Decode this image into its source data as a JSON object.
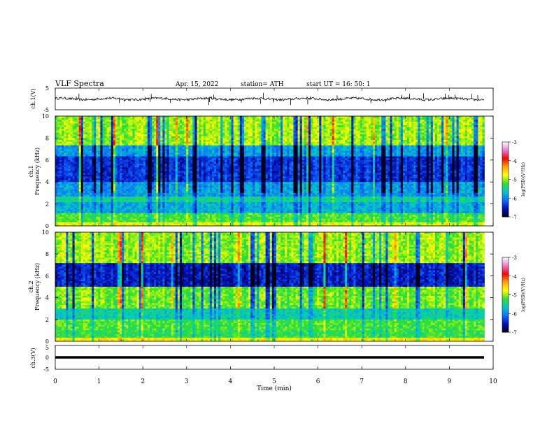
{
  "header": {
    "title": "VLF  Spectra",
    "date": "Apr. 15, 2022",
    "station": "station= ATH",
    "start": "start  UT  =   16: 50: 1"
  },
  "chart_data": {
    "type": "heatmap",
    "x_axis": {
      "label": "Time  (min)",
      "range": [
        0,
        10
      ],
      "ticks": [
        0,
        1,
        2,
        3,
        4,
        5,
        6,
        7,
        8,
        9,
        10
      ],
      "data_extent": [
        0,
        9.8
      ]
    },
    "panels": [
      {
        "id": "ch1-waveform",
        "type": "line",
        "ylabel": "ch.1(V)",
        "ylim": [
          -5,
          5
        ],
        "ytick_labels": [
          "5",
          "-5"
        ],
        "baseline": 0,
        "description": "noisy waveform with occasional spikes"
      },
      {
        "id": "ch1-spectrogram",
        "type": "heatmap",
        "ylabel": "ch.1\nFrequency  (kHz)",
        "ylim": [
          0,
          10
        ],
        "ytick_labels": [
          "0",
          "2",
          "4",
          "6",
          "8",
          "10"
        ],
        "bands": [
          {
            "from": 0,
            "to": 0.3,
            "level": -4.8
          },
          {
            "from": 0.3,
            "to": 1.2,
            "level": -5.2
          },
          {
            "from": 1.2,
            "to": 2.2,
            "level": -5.8
          },
          {
            "from": 2.2,
            "to": 2.6,
            "level": -5.5
          },
          {
            "from": 2.6,
            "to": 4.0,
            "level": -5.9
          },
          {
            "from": 4.0,
            "to": 6.4,
            "level": -6.4
          },
          {
            "from": 6.4,
            "to": 7.4,
            "level": -5.9
          },
          {
            "from": 7.4,
            "to": 10,
            "level": -5.0
          }
        ]
      },
      {
        "id": "ch2-spectrogram",
        "type": "heatmap",
        "ylabel": "ch.2\nFrequency  (kHz)",
        "ylim": [
          0,
          10
        ],
        "ytick_labels": [
          "0",
          "2",
          "4",
          "6",
          "8",
          "10"
        ],
        "bands": [
          {
            "from": 0,
            "to": 0.4,
            "level": -4.7
          },
          {
            "from": 0.4,
            "to": 1.0,
            "level": -5.3
          },
          {
            "from": 1.0,
            "to": 2.0,
            "level": -5.2
          },
          {
            "from": 2.0,
            "to": 3.0,
            "level": -5.6
          },
          {
            "from": 3.0,
            "to": 5.0,
            "level": -5.1
          },
          {
            "from": 5.0,
            "to": 7.2,
            "level": -6.5
          },
          {
            "from": 7.2,
            "to": 10,
            "level": -5.0
          }
        ]
      },
      {
        "id": "ch3-waveform",
        "type": "line",
        "ylabel": "ch.3(V)",
        "ylim": [
          -5,
          5
        ],
        "ytick_labels": [
          "5",
          "0",
          "-5"
        ],
        "baseline": 0,
        "description": "flat thick line near 0 V"
      }
    ],
    "colorbar": {
      "label": "log(PSD)(V²/Hz)",
      "range": [
        -7,
        -3
      ],
      "tick_labels": [
        "-3",
        "-4",
        "-5",
        "-6",
        "-7"
      ],
      "colormap": [
        "#ffffff",
        "#e87ad0",
        "#ff0000",
        "#ffa500",
        "#ffff00",
        "#30e030",
        "#00c8c8",
        "#1070ff",
        "#0010c0",
        "#000018"
      ]
    }
  }
}
